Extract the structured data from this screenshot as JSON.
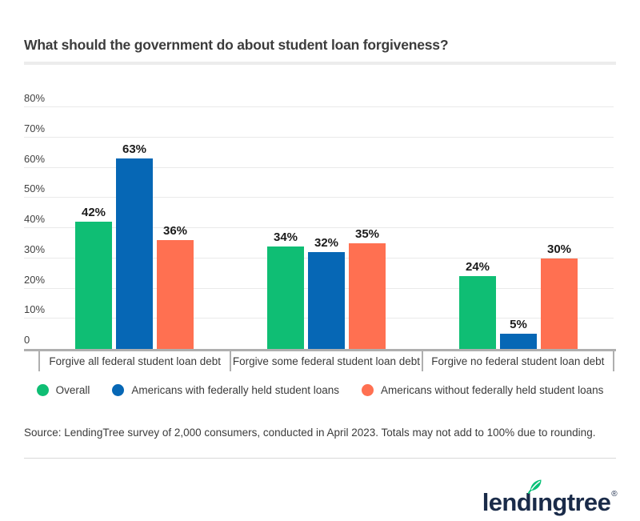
{
  "title": "What should the government do about student loan forgiveness?",
  "chart_data": {
    "type": "bar",
    "title": "What should the government do about student loan forgiveness?",
    "categories": [
      "Forgive all federal student loan debt",
      "Forgive some federal student loan debt",
      "Forgive no federal student loan debt"
    ],
    "series": [
      {
        "name": "Overall",
        "color": "#0FBE74",
        "values": [
          42,
          34,
          24
        ],
        "value_labels": [
          "42%",
          "34%",
          "24%"
        ]
      },
      {
        "name": "Americans with federally held student loans",
        "color": "#0667B5",
        "values": [
          63,
          32,
          5
        ],
        "value_labels": [
          "63%",
          "32%",
          "5%"
        ]
      },
      {
        "name": "Americans without federally held student loans",
        "color": "#FF7051",
        "values": [
          36,
          35,
          30
        ],
        "value_labels": [
          "36%",
          "35%",
          "30%"
        ]
      }
    ],
    "y_ticks": [
      {
        "label": "80%",
        "value": 80
      },
      {
        "label": "70%",
        "value": 70
      },
      {
        "label": "60%",
        "value": 60
      },
      {
        "label": "50%",
        "value": 50
      },
      {
        "label": "40%",
        "value": 40
      },
      {
        "label": "30%",
        "value": 30
      },
      {
        "label": "20%",
        "value": 20
      },
      {
        "label": "10%",
        "value": 10
      },
      {
        "label": "0",
        "value": 0
      }
    ],
    "ylim": [
      0,
      80
    ],
    "grid": true,
    "legend_position": "bottom",
    "value_format": "percent"
  },
  "source_note": "Source: LendingTree survey of 2,000 consumers, conducted in April 2023. Totals may not add to 100% due to rounding.",
  "logo": {
    "full_name": "lendingtree",
    "text_before_leaf": "lend",
    "dotless_i": "ı",
    "text_after_leaf": "ngtree",
    "registered_mark": "®",
    "leaf_color": "#08C177",
    "text_color": "#1A2B49"
  },
  "colors": {
    "grid": "#EAEAEA",
    "axis": "#AFAFAF",
    "divider_top": "#ECECEC",
    "divider_bottom": "#D8D8D8",
    "title_text": "#3C3C3C",
    "body_text": "#3A3A3A"
  }
}
